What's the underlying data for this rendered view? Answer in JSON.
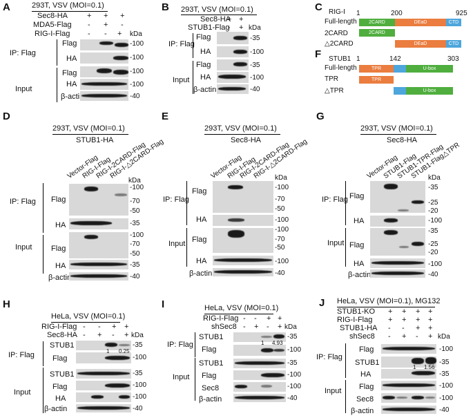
{
  "panels": {
    "A": {
      "letter": "A",
      "title": "293T, VSV (MOI=0.1)",
      "rows": [
        {
          "label": "Sec8-HA",
          "signs": [
            "+",
            "+",
            "+"
          ]
        },
        {
          "label": "MDA5-Flag",
          "signs": [
            "-",
            "+",
            "-"
          ]
        },
        {
          "label": "RIG-I-Flag",
          "signs": [
            "-",
            "-",
            "+"
          ]
        }
      ],
      "kda": "kDa",
      "ip": "IP: Flag",
      "input": "Input",
      "blots": [
        "Flag",
        "HA",
        "Flag",
        "HA",
        "β-actin"
      ],
      "markers": [
        "-100",
        "-100",
        "-100",
        "-100",
        "-40"
      ]
    },
    "B": {
      "letter": "B",
      "title": "293T, VSV (MOI=0.1)",
      "rows": [
        {
          "label": "Sec8-HA",
          "signs": [
            "+",
            "+"
          ]
        },
        {
          "label": "STUB1-Flag",
          "signs": [
            "-",
            "+"
          ]
        }
      ],
      "kda": "kDa",
      "ip": "IP: Flag",
      "input": "Input",
      "blots": [
        "Flag",
        "HA",
        "Flag",
        "HA",
        "β-actin"
      ],
      "markers": [
        "-35",
        "-100",
        "-35",
        "-100",
        "-40"
      ]
    },
    "C": {
      "letter": "C",
      "protein": "RIG-I",
      "start": "1",
      "mid": "200",
      "end": "925",
      "rows": [
        "Full-length",
        "2CARD",
        "△2CARD"
      ],
      "domains": [
        "2CARD",
        "DEaD",
        "CTD"
      ]
    },
    "F": {
      "letter": "F",
      "protein": "STUB1",
      "start": "1",
      "mid": "142",
      "end": "303",
      "rows": [
        "Full-length",
        "TPR",
        "△TPR"
      ],
      "domains": [
        "TPR",
        "U-box"
      ]
    },
    "D": {
      "letter": "D",
      "title": "293T, VSV (MOI=0.1)",
      "subtitle": "STUB1-HA",
      "lanes": [
        "Vector-Flag",
        "RIG-I-Flag",
        "RIG-I-2CARD-Flag",
        "RIG-I-△2CARD-Flag"
      ],
      "kda": "kDa",
      "ip": "IP: Flag",
      "input": "Input",
      "blots": [
        "Flag",
        "HA",
        "Flag",
        "HA",
        "β-actin"
      ],
      "markers": [
        "-100",
        "-70",
        "-50",
        "-35",
        "-100",
        "-70",
        "-50",
        "-35",
        "-40"
      ]
    },
    "E": {
      "letter": "E",
      "title": "293T, VSV (MOI=0.1)",
      "subtitle": "Sec8-HA",
      "lanes": [
        "Vector-Flag",
        "RIG-I-Flag",
        "RIG-I-2CARD-Flag",
        "RIG-I-△2CARD-Flag"
      ],
      "kda": "kDa",
      "ip": "IP: Flag",
      "input": "Input",
      "blots": [
        "Flag",
        "HA",
        "Flag",
        "HA",
        "β-actin"
      ],
      "markers": [
        "-100",
        "-70",
        "-50",
        "-100",
        "-100",
        "-70",
        "-50",
        "-100",
        "-40"
      ]
    },
    "G": {
      "letter": "G",
      "title": "293T, VSV (MOI=0.1)",
      "subtitle": "Sec8-HA",
      "lanes": [
        "Vector-Flag",
        "STUB1-Flag",
        "STUB1-TPR-Flag",
        "STUB1-Flag△TPR"
      ],
      "kda": "kDa",
      "ip": "IP: Flag",
      "input": "Input",
      "blots": [
        "Flag",
        "HA",
        "Flag",
        "HA",
        "β-actin"
      ],
      "markers": [
        "-35",
        "-25",
        "-20",
        "-100",
        "-35",
        "-25",
        "-20",
        "-100",
        "-40"
      ]
    },
    "H": {
      "letter": "H",
      "title": "HeLa, VSV (MOI=0.1)",
      "rows": [
        {
          "label": "RIG-I-Flag",
          "signs": [
            "-",
            "-",
            "+",
            "+"
          ]
        },
        {
          "label": "Sec8-HA",
          "signs": [
            "-",
            "+",
            "-",
            "+"
          ]
        }
      ],
      "kda": "kDa",
      "ip": "IP: Flag",
      "input": "Input",
      "blots": [
        "STUB1",
        "Flag",
        "STUB1",
        "Flag",
        "HA",
        "β-actin"
      ],
      "quant": [
        "1",
        "0.25"
      ],
      "markers": [
        "-35",
        "-100",
        "-35",
        "-100",
        "-100",
        "-40"
      ]
    },
    "I": {
      "letter": "I",
      "title": "HeLa, VSV (MOI=0.1)",
      "rows": [
        {
          "label": "RIG-I-Flag",
          "signs": [
            "-",
            "-",
            "+",
            "+"
          ]
        },
        {
          "label": "shSec8",
          "signs": [
            "-",
            "+",
            "-",
            "+"
          ]
        }
      ],
      "kda": "kDa",
      "ip": "IP: Flag",
      "input": "Input",
      "blots": [
        "STUB1",
        "Flag",
        "STUB1",
        "Flag",
        "Sec8",
        "β-actin"
      ],
      "quant": [
        "1",
        "4.93"
      ],
      "markers": [
        "-35",
        "-100",
        "-35",
        "-100",
        "-100",
        "-40"
      ]
    },
    "J": {
      "letter": "J",
      "title": "HeLa, VSV (MOI=0.1), MG132",
      "rows": [
        {
          "label": "STUB1-KO",
          "signs": [
            "+",
            "+",
            "+",
            "+"
          ]
        },
        {
          "label": "RIG-I-Flag",
          "signs": [
            "+",
            "+",
            "+",
            "+"
          ]
        },
        {
          "label": "STUB1-HA",
          "signs": [
            "-",
            "-",
            "+",
            "+"
          ]
        },
        {
          "label": "shSec8",
          "signs": [
            "-",
            "+",
            "-",
            "+"
          ]
        }
      ],
      "kda": "kDa",
      "ip": "IP: Flag",
      "input": "Input",
      "blots": [
        "Flag",
        "STUB1",
        "HA",
        "Flag",
        "Sec8",
        "β-actin"
      ],
      "quant": [
        "1",
        "1.56"
      ],
      "markers": [
        "-100",
        "-35",
        "-35",
        "-100",
        "-100",
        "-40"
      ]
    }
  }
}
